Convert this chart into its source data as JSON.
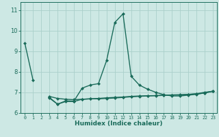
{
  "xlabel": "Humidex (Indice chaleur)",
  "x": [
    0,
    1,
    2,
    3,
    4,
    5,
    6,
    7,
    8,
    9,
    10,
    11,
    12,
    13,
    14,
    15,
    16,
    17,
    18,
    19,
    20,
    21,
    22,
    23
  ],
  "line1_y": [
    9.4,
    7.6,
    null,
    null,
    null,
    null,
    null,
    null,
    null,
    null,
    null,
    null,
    null,
    null,
    null,
    null,
    null,
    null,
    null,
    null,
    null,
    null,
    null,
    null
  ],
  "line2_y": [
    null,
    null,
    null,
    6.8,
    6.7,
    6.66,
    6.64,
    6.66,
    6.68,
    6.7,
    6.73,
    6.75,
    6.77,
    6.8,
    6.82,
    6.83,
    6.84,
    6.86,
    6.87,
    6.88,
    6.9,
    6.93,
    7.0,
    7.05
  ],
  "line3_y": [
    null,
    null,
    null,
    6.75,
    6.42,
    6.58,
    6.57,
    7.2,
    7.35,
    7.42,
    8.55,
    10.4,
    10.82,
    7.78,
    7.35,
    7.15,
    7.0,
    6.88,
    6.82,
    6.82,
    6.86,
    6.9,
    6.97,
    7.05
  ],
  "line4_y": [
    null,
    null,
    null,
    6.72,
    6.42,
    6.55,
    6.55,
    6.66,
    6.68,
    6.68,
    6.7,
    6.72,
    6.75,
    6.78,
    6.8,
    6.82,
    6.83,
    6.85,
    6.87,
    6.87,
    6.89,
    6.92,
    6.97,
    7.05
  ],
  "line_color": "#1a6b5a",
  "bg_color": "#cde8e4",
  "grid_color": "#aacfca",
  "ylim": [
    6.0,
    11.4
  ],
  "yticks": [
    6,
    7,
    8,
    9,
    10,
    11
  ],
  "marker": "D",
  "markersize": 2.0,
  "linewidth": 1.0
}
